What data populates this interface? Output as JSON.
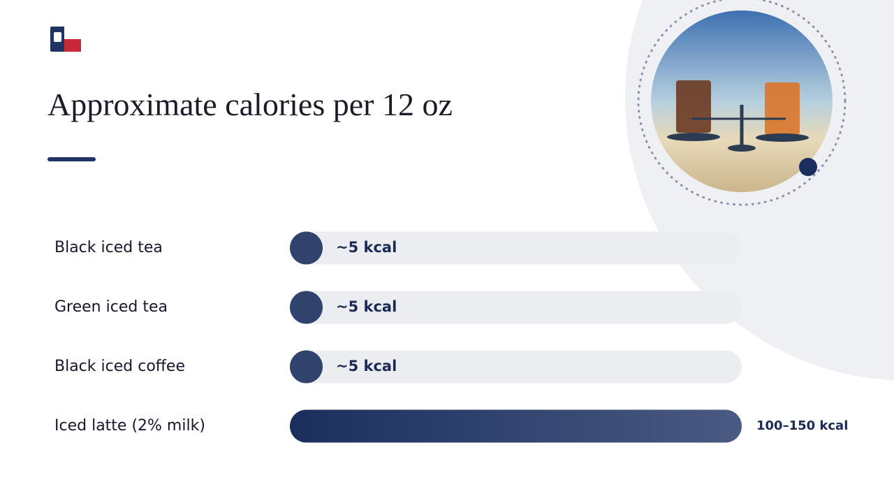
{
  "chart_data": {
    "type": "hbar",
    "title": "Approximate calories per 12 oz",
    "categories": [
      "Black iced tea",
      "Green iced tea",
      "Black iced coffee",
      "Iced latte (2% milk)"
    ],
    "values": [
      5,
      5,
      5,
      150
    ],
    "value_labels": [
      "~5 kcal",
      "~5 kcal",
      "~5 kcal",
      "100–150 kcal"
    ],
    "xlim": [
      0,
      150
    ],
    "color": "#1f3462",
    "track_color": "#ecedf1"
  }
}
